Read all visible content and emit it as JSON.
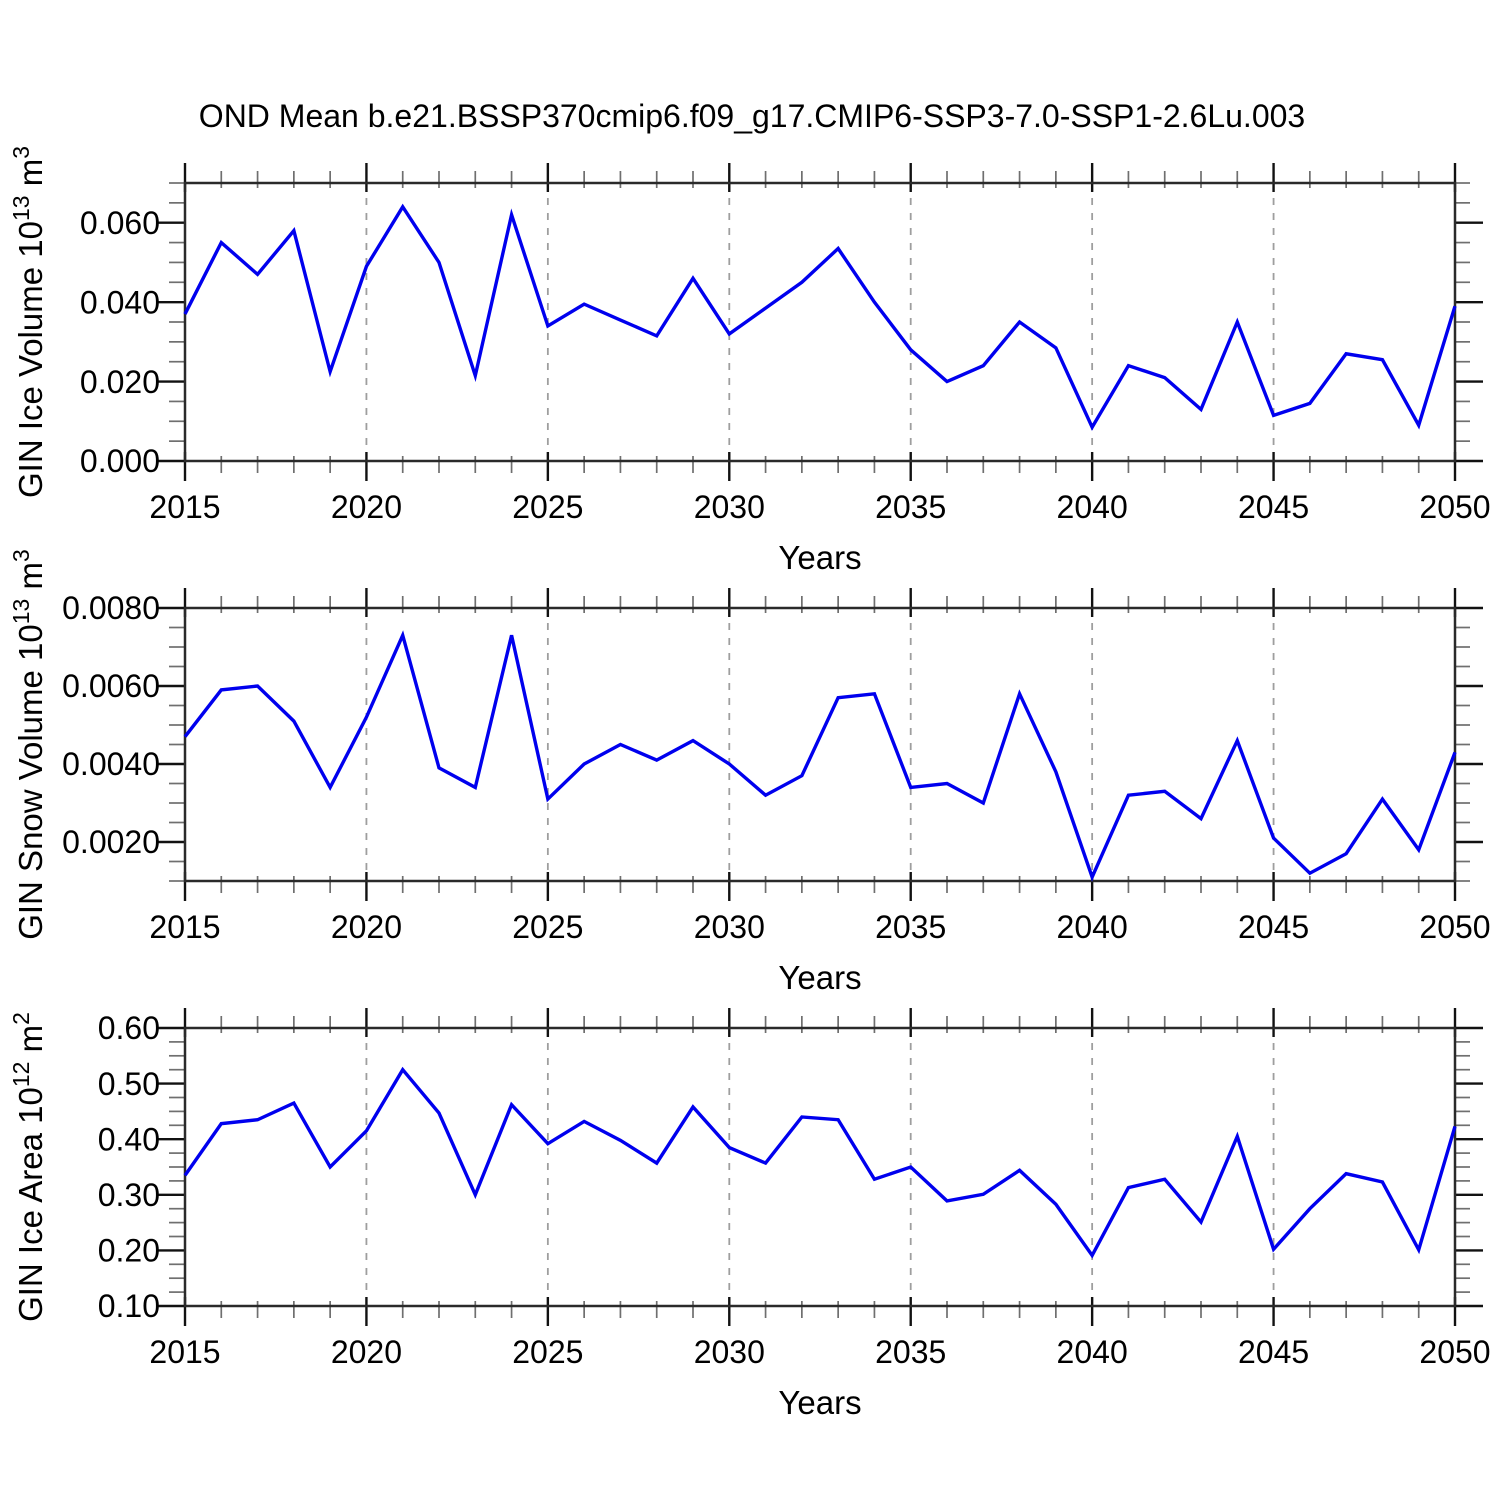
{
  "figure": {
    "title": "OND Mean b.e21.BSSP370cmip6.f09_g17.CMIP6-SSP3-7.0-SSP1-2.6Lu.003",
    "background_color": "#ffffff",
    "line_color": "#0000ee",
    "grid_color": "#9e9e9e",
    "axis_color": "#2a2a2a",
    "major_tick_color": "#111111",
    "minor_tick_color": "#6f6f6f",
    "xlabel": "Years"
  },
  "chart_data": [
    {
      "type": "line",
      "title": "OND Mean b.e21.BSSP370cmip6.f09_g17.CMIP6-SSP3-7.0-SSP1-2.6Lu.003",
      "xlabel": "Years",
      "ylabel": "GIN Ice Volume 10^13 m^3",
      "ylabel_parts": [
        {
          "text": "GIN Ice Volume 10",
          "sup": false
        },
        {
          "text": "13",
          "sup": true
        },
        {
          "text": " m",
          "sup": false
        },
        {
          "text": "3",
          "sup": true
        }
      ],
      "legend": "none",
      "grid": "vertical-dashed",
      "xlim": [
        2015,
        2050
      ],
      "ylim": [
        0.0,
        0.07
      ],
      "xticks_labeled": [
        2015,
        2020,
        2025,
        2030,
        2035,
        2040,
        2045,
        2050
      ],
      "x_minor_step": 1,
      "gridlines_x": [
        2020,
        2025,
        2030,
        2035,
        2040,
        2045
      ],
      "ytick_values": [
        0.0,
        0.02,
        0.04,
        0.06
      ],
      "ytick_labels": [
        "0.000",
        "0.020",
        "0.040",
        "0.060"
      ],
      "y_minor_step": 0.005,
      "x": [
        2015,
        2016,
        2017,
        2018,
        2019,
        2020,
        2021,
        2022,
        2023,
        2024,
        2025,
        2026,
        2027,
        2028,
        2029,
        2030,
        2031,
        2032,
        2033,
        2034,
        2035,
        2036,
        2037,
        2038,
        2039,
        2040,
        2041,
        2042,
        2043,
        2044,
        2045,
        2046,
        2047,
        2048,
        2049,
        2050
      ],
      "values": [
        0.037,
        0.055,
        0.047,
        0.058,
        0.0225,
        0.049,
        0.064,
        0.05,
        0.0215,
        0.062,
        0.034,
        0.0395,
        0.0355,
        0.0315,
        0.046,
        0.032,
        0.0385,
        0.045,
        0.0535,
        0.04,
        0.028,
        0.02,
        0.024,
        0.035,
        0.0285,
        0.0085,
        0.024,
        0.021,
        0.013,
        0.035,
        0.0115,
        0.0145,
        0.027,
        0.0255,
        0.009,
        0.039
      ]
    },
    {
      "type": "line",
      "title": "",
      "xlabel": "Years",
      "ylabel": "GIN Snow Volume 10^13 m^3",
      "ylabel_parts": [
        {
          "text": "GIN Snow Volume 10",
          "sup": false
        },
        {
          "text": "13",
          "sup": true
        },
        {
          "text": " m",
          "sup": false
        },
        {
          "text": "3",
          "sup": true
        }
      ],
      "legend": "none",
      "grid": "vertical-dashed",
      "xlim": [
        2015,
        2050
      ],
      "ylim": [
        0.001,
        0.008
      ],
      "xticks_labeled": [
        2015,
        2020,
        2025,
        2030,
        2035,
        2040,
        2045,
        2050
      ],
      "x_minor_step": 1,
      "gridlines_x": [
        2020,
        2025,
        2030,
        2035,
        2040,
        2045
      ],
      "ytick_values": [
        0.002,
        0.004,
        0.006,
        0.008
      ],
      "ytick_labels": [
        "0.0020",
        "0.0040",
        "0.0060",
        "0.0080"
      ],
      "y_minor_step": 0.0005,
      "x": [
        2015,
        2016,
        2017,
        2018,
        2019,
        2020,
        2021,
        2022,
        2023,
        2024,
        2025,
        2026,
        2027,
        2028,
        2029,
        2030,
        2031,
        2032,
        2033,
        2034,
        2035,
        2036,
        2037,
        2038,
        2039,
        2040,
        2041,
        2042,
        2043,
        2044,
        2045,
        2046,
        2047,
        2048,
        2049,
        2050
      ],
      "values": [
        0.0047,
        0.0059,
        0.006,
        0.0051,
        0.0034,
        0.0052,
        0.0073,
        0.0039,
        0.0034,
        0.0073,
        0.0031,
        0.004,
        0.0045,
        0.0041,
        0.0046,
        0.004,
        0.0032,
        0.0037,
        0.0057,
        0.0058,
        0.0034,
        0.0035,
        0.003,
        0.0058,
        0.0038,
        0.0011,
        0.0032,
        0.0033,
        0.0026,
        0.0046,
        0.0021,
        0.0012,
        0.0017,
        0.0031,
        0.0018,
        0.0043
      ]
    },
    {
      "type": "line",
      "title": "",
      "xlabel": "Years",
      "ylabel": "GIN Ice Area 10^12 m^2",
      "ylabel_parts": [
        {
          "text": "GIN Ice Area 10",
          "sup": false
        },
        {
          "text": "12",
          "sup": true
        },
        {
          "text": " m",
          "sup": false
        },
        {
          "text": "2",
          "sup": true
        }
      ],
      "legend": "none",
      "grid": "vertical-dashed",
      "xlim": [
        2015,
        2050
      ],
      "ylim": [
        0.1,
        0.6
      ],
      "xticks_labeled": [
        2015,
        2020,
        2025,
        2030,
        2035,
        2040,
        2045,
        2050
      ],
      "x_minor_step": 1,
      "gridlines_x": [
        2020,
        2025,
        2030,
        2035,
        2040,
        2045
      ],
      "ytick_values": [
        0.1,
        0.2,
        0.3,
        0.4,
        0.5,
        0.6
      ],
      "ytick_labels": [
        "0.10",
        "0.20",
        "0.30",
        "0.40",
        "0.50",
        "0.60"
      ],
      "y_minor_step": 0.025,
      "x": [
        2015,
        2016,
        2017,
        2018,
        2019,
        2020,
        2021,
        2022,
        2023,
        2024,
        2025,
        2026,
        2027,
        2028,
        2029,
        2030,
        2031,
        2032,
        2033,
        2034,
        2035,
        2036,
        2037,
        2038,
        2039,
        2040,
        2041,
        2042,
        2043,
        2044,
        2045,
        2046,
        2047,
        2048,
        2049,
        2050
      ],
      "values": [
        0.335,
        0.428,
        0.435,
        0.465,
        0.35,
        0.415,
        0.525,
        0.447,
        0.3,
        0.462,
        0.392,
        0.432,
        0.398,
        0.357,
        0.458,
        0.385,
        0.357,
        0.44,
        0.435,
        0.328,
        0.35,
        0.289,
        0.301,
        0.344,
        0.283,
        0.191,
        0.313,
        0.328,
        0.251,
        0.405,
        0.202,
        0.275,
        0.338,
        0.323,
        0.201,
        0.423
      ]
    }
  ]
}
